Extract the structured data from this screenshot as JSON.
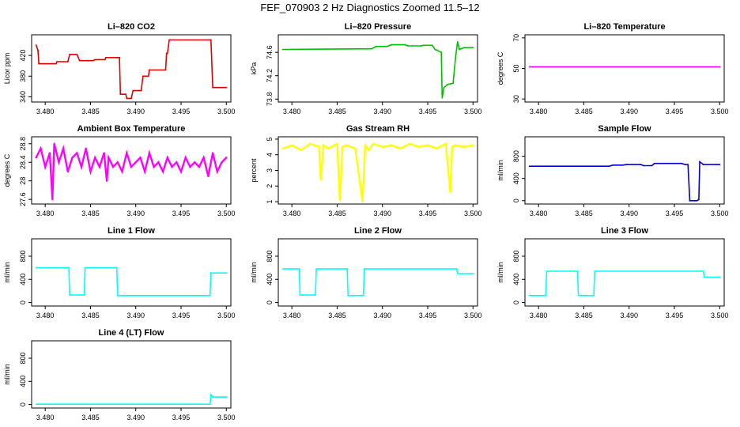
{
  "page": {
    "title": "FEF_070903  2 Hz Diagnostics Zoomed 11.5–12"
  },
  "chart_data": [
    {
      "type": "line",
      "title": "Li–820 CO2",
      "ylabel": "Licor ppm",
      "xlabel": "",
      "color": "#e00000",
      "xlim": [
        3.4785,
        3.5005
      ],
      "ylim": [
        330,
        460
      ],
      "yticks": [
        340,
        380,
        420
      ],
      "xticks": [
        3.48,
        3.485,
        3.49,
        3.495,
        3.5
      ],
      "xticklabels": [
        "3.480",
        "3.485",
        "3.490",
        "3.495",
        "3.500"
      ],
      "x": [
        3.479,
        3.4792,
        3.4793,
        3.4812,
        3.4813,
        3.4825,
        3.4827,
        3.4835,
        3.4838,
        3.4853,
        3.4855,
        3.4866,
        3.4867,
        3.4882,
        3.4883,
        3.4889,
        3.489,
        3.4895,
        3.4897,
        3.4906,
        3.4908,
        3.4914,
        3.4915,
        3.4933,
        3.4934,
        3.4935,
        3.4937,
        3.4983,
        3.4985,
        3.5
      ],
      "y": [
        440,
        430,
        404,
        404,
        408,
        408,
        422,
        422,
        410,
        410,
        412,
        412,
        416,
        416,
        345,
        345,
        337,
        337,
        352,
        352,
        380,
        380,
        392,
        392,
        424,
        424,
        450,
        450,
        358,
        358
      ],
      "grid": false
    },
    {
      "type": "line",
      "title": "Li–820 Pressure",
      "ylabel": "kPa",
      "xlabel": "",
      "color": "#00c000",
      "xlim": [
        3.4785,
        3.5005
      ],
      "ylim": [
        73.75,
        74.9
      ],
      "yticks": [
        73.8,
        74.2,
        74.6
      ],
      "xticks": [
        3.48,
        3.485,
        3.49,
        3.495,
        3.5
      ],
      "xticklabels": [
        "3.480",
        "3.485",
        "3.490",
        "3.495",
        "3.500"
      ],
      "x": [
        3.479,
        3.4888,
        3.4893,
        3.4905,
        3.491,
        3.4925,
        3.4928,
        3.4943,
        3.4945,
        3.4955,
        3.4958,
        3.4965,
        3.4966,
        3.4968,
        3.4972,
        3.4978,
        3.4981,
        3.4983,
        3.4985,
        3.499,
        3.5
      ],
      "y": [
        74.65,
        74.66,
        74.7,
        74.7,
        74.73,
        74.73,
        74.71,
        74.71,
        74.72,
        74.72,
        74.65,
        74.6,
        73.82,
        74.0,
        74.05,
        74.07,
        74.55,
        74.78,
        74.65,
        74.68,
        74.68
      ],
      "grid": false
    },
    {
      "type": "line",
      "title": "Li–820 Temperature",
      "ylabel": "degrees C",
      "xlabel": "",
      "color": "#ff00ff",
      "xlim": [
        3.4785,
        3.5005
      ],
      "ylim": [
        28,
        72
      ],
      "yticks": [
        30,
        50,
        70
      ],
      "xticks": [
        3.48,
        3.485,
        3.49,
        3.495,
        3.5
      ],
      "xticklabels": [
        "3.480",
        "3.485",
        "3.490",
        "3.495",
        "3.500"
      ],
      "x": [
        3.479,
        3.5
      ],
      "y": [
        51,
        51
      ],
      "grid": false
    },
    {
      "type": "line",
      "title": "Ambient Box Temperature",
      "ylabel": "degrees C",
      "xlabel": "",
      "color": "#ff00ff",
      "xlim": [
        3.4785,
        3.5005
      ],
      "ylim": [
        27.5,
        28.95
      ],
      "yticks": [
        27.6,
        28.0,
        28.4,
        28.8
      ],
      "xticks": [
        3.48,
        3.485,
        3.49,
        3.495,
        3.5
      ],
      "xticklabels": [
        "3.480",
        "3.485",
        "3.490",
        "3.495",
        "3.500"
      ],
      "x": [
        3.479,
        3.4795,
        3.48,
        3.4805,
        3.4808,
        3.481,
        3.4815,
        3.482,
        3.4825,
        3.483,
        3.4835,
        3.484,
        3.4845,
        3.485,
        3.4855,
        3.486,
        3.4865,
        3.4868,
        3.487,
        3.4875,
        3.488,
        3.4885,
        3.489,
        3.4895,
        3.49,
        3.4905,
        3.491,
        3.4915,
        3.492,
        3.4925,
        3.493,
        3.4935,
        3.494,
        3.4945,
        3.495,
        3.4955,
        3.496,
        3.4965,
        3.497,
        3.4975,
        3.498,
        3.4985,
        3.499,
        3.4995,
        3.5
      ],
      "y": [
        28.5,
        28.7,
        28.3,
        28.6,
        27.6,
        28.8,
        28.4,
        28.7,
        28.2,
        28.5,
        28.6,
        28.3,
        28.7,
        28.2,
        28.5,
        28.3,
        28.6,
        28.0,
        28.5,
        28.3,
        28.4,
        28.2,
        28.6,
        28.3,
        28.4,
        28.5,
        28.2,
        28.6,
        28.3,
        28.4,
        28.2,
        28.5,
        28.3,
        28.4,
        28.2,
        28.5,
        28.3,
        28.4,
        28.3,
        28.5,
        28.1,
        28.6,
        28.2,
        28.4,
        28.5
      ],
      "grid": false
    },
    {
      "type": "line",
      "title": "Gas Stream RH",
      "ylabel": "percent",
      "xlabel": "",
      "color": "#ffff00",
      "xlim": [
        3.4785,
        3.5005
      ],
      "ylim": [
        0.85,
        5.15
      ],
      "yticks": [
        1,
        2,
        3,
        4,
        5
      ],
      "xticks": [
        3.48,
        3.485,
        3.49,
        3.495,
        3.5
      ],
      "xticklabels": [
        "3.480",
        "3.485",
        "3.490",
        "3.495",
        "3.500"
      ],
      "x": [
        3.479,
        3.48,
        3.481,
        3.482,
        3.483,
        3.4832,
        3.4835,
        3.484,
        3.485,
        3.4853,
        3.4856,
        3.486,
        3.487,
        3.4878,
        3.4881,
        3.4885,
        3.489,
        3.49,
        3.491,
        3.492,
        3.493,
        3.494,
        3.495,
        3.496,
        3.497,
        3.4975,
        3.4977,
        3.498,
        3.499,
        3.5
      ],
      "y": [
        4.4,
        4.6,
        4.3,
        4.7,
        4.5,
        2.4,
        4.6,
        4.4,
        4.7,
        1.1,
        4.5,
        4.6,
        4.4,
        1.0,
        4.6,
        4.3,
        4.7,
        4.5,
        4.6,
        4.4,
        4.7,
        4.5,
        4.6,
        4.4,
        4.7,
        1.6,
        4.5,
        4.6,
        4.5,
        4.6
      ],
      "grid": false
    },
    {
      "type": "line",
      "title": "Sample Flow",
      "ylabel": "ml/min",
      "xlabel": "",
      "color": "#0000cc",
      "xlim": [
        3.4785,
        3.5005
      ],
      "ylim": [
        -60,
        1150
      ],
      "yticks": [
        0,
        400,
        800
      ],
      "xticks": [
        3.48,
        3.485,
        3.49,
        3.495,
        3.5
      ],
      "xticklabels": [
        "3.480",
        "3.485",
        "3.490",
        "3.495",
        "3.500"
      ],
      "x": [
        3.479,
        3.4878,
        3.4882,
        3.4893,
        3.4897,
        3.4913,
        3.4916,
        3.4925,
        3.4928,
        3.4958,
        3.4962,
        3.4965,
        3.4967,
        3.4975,
        3.4977,
        3.4978,
        3.4982,
        3.5
      ],
      "y": [
        620,
        620,
        640,
        640,
        650,
        650,
        630,
        630,
        670,
        670,
        650,
        650,
        0,
        0,
        20,
        700,
        650,
        650
      ],
      "grid": false
    },
    {
      "type": "line",
      "title": "Line 1 Flow",
      "ylabel": "ml/min",
      "xlabel": "",
      "color": "#00ffff",
      "xlim": [
        3.4785,
        3.5005
      ],
      "ylim": [
        -60,
        1100
      ],
      "yticks": [
        0,
        400,
        800
      ],
      "xticks": [
        3.48,
        3.485,
        3.49,
        3.495,
        3.5
      ],
      "xticklabels": [
        "3.480",
        "3.485",
        "3.490",
        "3.495",
        "3.500"
      ],
      "x": [
        3.479,
        3.4826,
        3.4827,
        3.4843,
        3.4844,
        3.4879,
        3.488,
        3.4982,
        3.4983,
        3.5
      ],
      "y": [
        600,
        600,
        130,
        130,
        600,
        600,
        120,
        120,
        510,
        510
      ],
      "grid": false
    },
    {
      "type": "line",
      "title": "Line 2 Flow",
      "ylabel": "ml/min",
      "xlabel": "",
      "color": "#00ffff",
      "xlim": [
        3.4785,
        3.5005
      ],
      "ylim": [
        -60,
        1100
      ],
      "yticks": [
        0,
        400,
        800
      ],
      "xticks": [
        3.48,
        3.485,
        3.49,
        3.495,
        3.5
      ],
      "xticklabels": [
        "3.480",
        "3.485",
        "3.490",
        "3.495",
        "3.500"
      ],
      "x": [
        3.479,
        3.4808,
        3.4809,
        3.4826,
        3.4827,
        3.4861,
        3.4862,
        3.4879,
        3.488,
        3.4982,
        3.4983,
        3.5
      ],
      "y": [
        580,
        580,
        130,
        130,
        580,
        580,
        120,
        120,
        580,
        580,
        500,
        500
      ],
      "grid": false
    },
    {
      "type": "line",
      "title": "Line 3 Flow",
      "ylabel": "ml/min",
      "xlabel": "",
      "color": "#00ffff",
      "xlim": [
        3.4785,
        3.5005
      ],
      "ylim": [
        -60,
        1100
      ],
      "yticks": [
        0,
        400,
        800
      ],
      "xticks": [
        3.48,
        3.485,
        3.49,
        3.495,
        3.5
      ],
      "xticklabels": [
        "3.480",
        "3.485",
        "3.490",
        "3.495",
        "3.500"
      ],
      "x": [
        3.479,
        3.4808,
        3.4809,
        3.4843,
        3.4844,
        3.4861,
        3.4862,
        3.4982,
        3.4983,
        3.5
      ],
      "y": [
        120,
        120,
        540,
        540,
        120,
        120,
        540,
        540,
        440,
        440
      ],
      "grid": false
    },
    {
      "type": "line",
      "title": "Line 4 (LT) Flow",
      "ylabel": "ml/min",
      "xlabel": "",
      "color": "#00ffff",
      "xlim": [
        3.4785,
        3.5005
      ],
      "ylim": [
        -60,
        1100
      ],
      "yticks": [
        0,
        400,
        800
      ],
      "xticks": [
        3.48,
        3.485,
        3.49,
        3.495,
        3.5
      ],
      "xticklabels": [
        "3.480",
        "3.485",
        "3.490",
        "3.495",
        "3.500"
      ],
      "x": [
        3.479,
        3.4982,
        3.4983,
        3.4985,
        3.5
      ],
      "y": [
        5,
        5,
        170,
        130,
        130
      ],
      "grid": false
    }
  ]
}
